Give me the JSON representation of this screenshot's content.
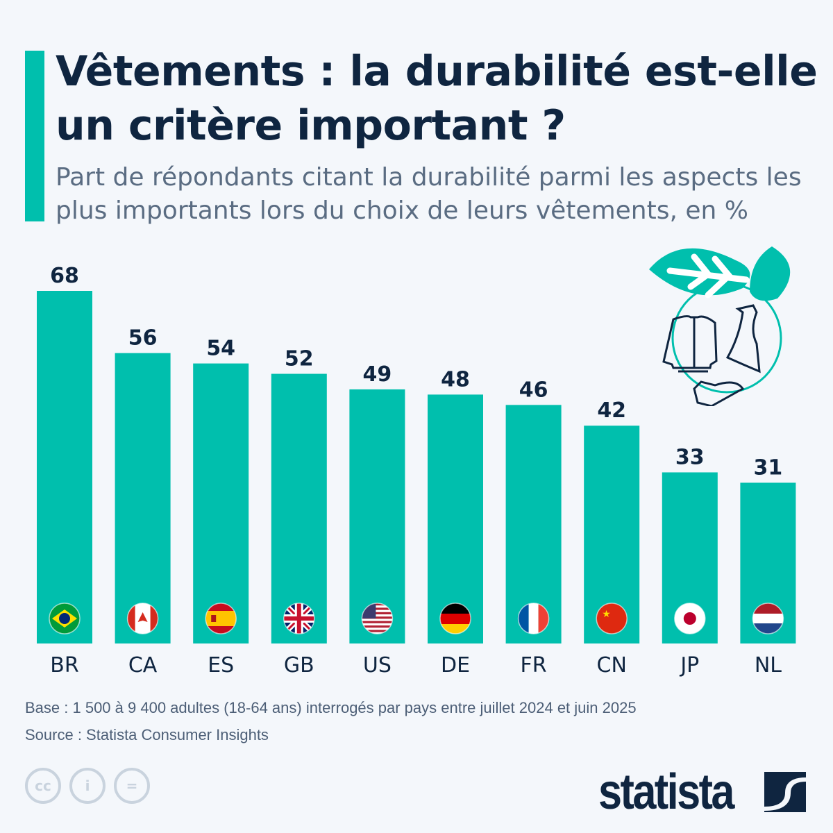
{
  "title": "Vêtements : la durabilité est-elle un critère important ?",
  "subtitle": "Part de répondants citant la durabilité parmi les aspects les plus importants lors du choix de leurs vêtements, en %",
  "colors": {
    "bar": "#00bfad",
    "title": "#0f2540",
    "accent": "#00bfad"
  },
  "chart_data": {
    "type": "bar",
    "categories": [
      "BR",
      "CA",
      "ES",
      "GB",
      "US",
      "DE",
      "FR",
      "CN",
      "JP",
      "NL"
    ],
    "values": [
      68,
      56,
      54,
      52,
      49,
      48,
      46,
      42,
      33,
      31
    ],
    "title": "Vêtements : la durabilité est-elle un critère important ?",
    "xlabel": "",
    "ylabel": "",
    "ylim": [
      0,
      68
    ],
    "grid": false,
    "data_labels": true,
    "flags": [
      "brazil",
      "canada",
      "spain",
      "united-kingdom",
      "united-states",
      "germany",
      "france",
      "china",
      "japan",
      "netherlands"
    ]
  },
  "footer": {
    "base": "Base : 1 500 à 9 400 adultes (18-64 ans) interrogés par pays entre juillet 2024 et juin 2025",
    "source": "Source : Statista Consumer Insights",
    "logo": "statista",
    "license_icons": [
      "creative-commons-icon",
      "attribution-icon",
      "no-derivatives-icon"
    ],
    "cc_text": "cc"
  }
}
